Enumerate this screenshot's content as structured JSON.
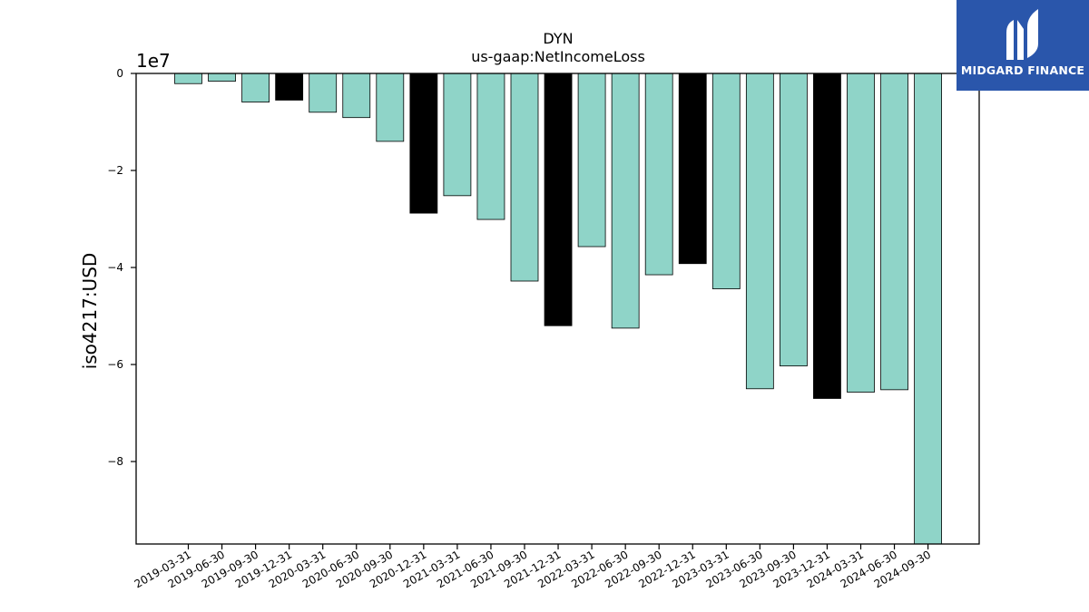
{
  "brand": {
    "name": "MIDGARD FINANCE",
    "color": "#2a56ab"
  },
  "chart_data": {
    "type": "bar",
    "title": "DYN",
    "subtitle": "us-gaap:NetIncomeLoss",
    "xlabel": "",
    "ylabel": "iso4217:USD",
    "offset_label": "1e7",
    "ylim": [
      -9.7,
      0
    ],
    "yticks": [
      0,
      -2,
      -4,
      -6,
      -8
    ],
    "ytick_labels": [
      "0",
      "−2",
      "−4",
      "−6",
      "−8"
    ],
    "grid": false,
    "colors": {
      "quarter": "#8fd4c8",
      "year_end": "#000000"
    },
    "categories": [
      "2019-03-31",
      "2019-06-30",
      "2019-09-30",
      "2019-12-31",
      "2020-03-31",
      "2020-06-30",
      "2020-09-30",
      "2020-12-31",
      "2021-03-31",
      "2021-06-30",
      "2021-09-30",
      "2021-12-31",
      "2022-03-31",
      "2022-06-30",
      "2022-09-30",
      "2022-12-31",
      "2023-03-31",
      "2023-06-30",
      "2023-09-30",
      "2023-12-31",
      "2024-03-31",
      "2024-06-30",
      "2024-09-30"
    ],
    "values": [
      -0.21,
      -0.16,
      -0.59,
      -0.55,
      -0.8,
      -0.91,
      -1.4,
      -2.88,
      -2.52,
      -3.01,
      -4.28,
      -5.2,
      -3.57,
      -5.25,
      -4.15,
      -3.92,
      -4.44,
      -6.5,
      -6.03,
      -6.7,
      -6.57,
      -6.52,
      -9.7
    ],
    "year_end": [
      false,
      false,
      false,
      true,
      false,
      false,
      false,
      true,
      false,
      false,
      false,
      true,
      false,
      false,
      false,
      true,
      false,
      false,
      false,
      true,
      false,
      false,
      false
    ]
  }
}
